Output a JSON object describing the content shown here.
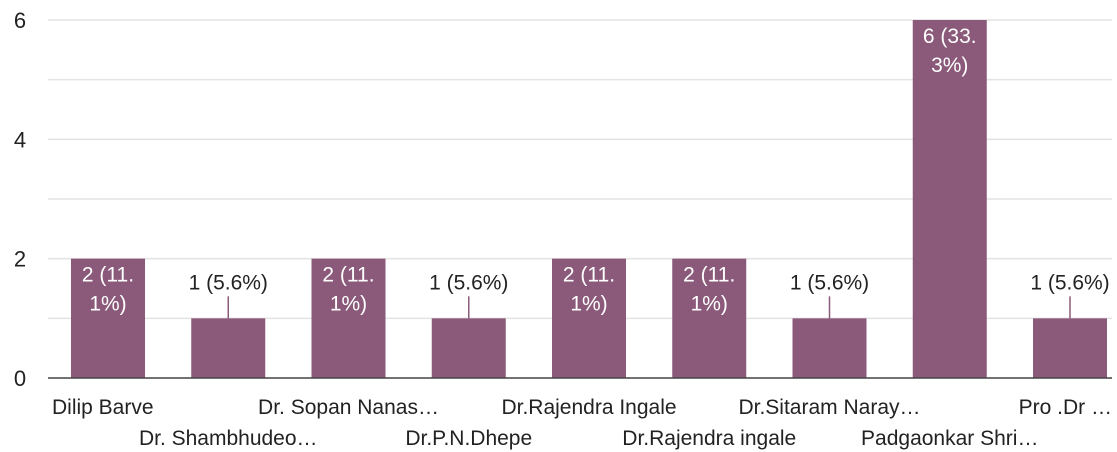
{
  "chart_data": {
    "type": "bar",
    "categories": [
      "Dilip Barve",
      "Dr. Shambhudeo…",
      "Dr. Sopan Nanas…",
      "Dr.P.N.Dhepe",
      "Dr.Rajendra Ingale",
      "Dr.Rajendra ingale",
      "Dr.Sitaram Naray…",
      "Padgaonkar Shri…",
      "Pro .Dr …"
    ],
    "values": [
      2,
      1,
      2,
      1,
      2,
      2,
      1,
      6,
      1
    ],
    "data_labels": [
      [
        "2 (11.",
        "1%)"
      ],
      [
        "1 (5.6%)"
      ],
      [
        "2 (11.",
        "1%)"
      ],
      [
        "1 (5.6%)"
      ],
      [
        "2 (11.",
        "1%)"
      ],
      [
        "2 (11.",
        "1%)"
      ],
      [
        "1 (5.6%)"
      ],
      [
        "6 (33.",
        "3%)"
      ],
      [
        "1 (5.6%)"
      ]
    ],
    "y_ticks": [
      "0",
      "2",
      "4",
      "6"
    ],
    "ylim": [
      0,
      6
    ],
    "grid": true,
    "legend": "none",
    "title": "",
    "xlabel": "",
    "ylabel": ""
  },
  "colors": {
    "bar": "#8b5a7a",
    "grid": "#e3e3e3",
    "axis": "#444444",
    "connector": "#8b5a7a"
  }
}
